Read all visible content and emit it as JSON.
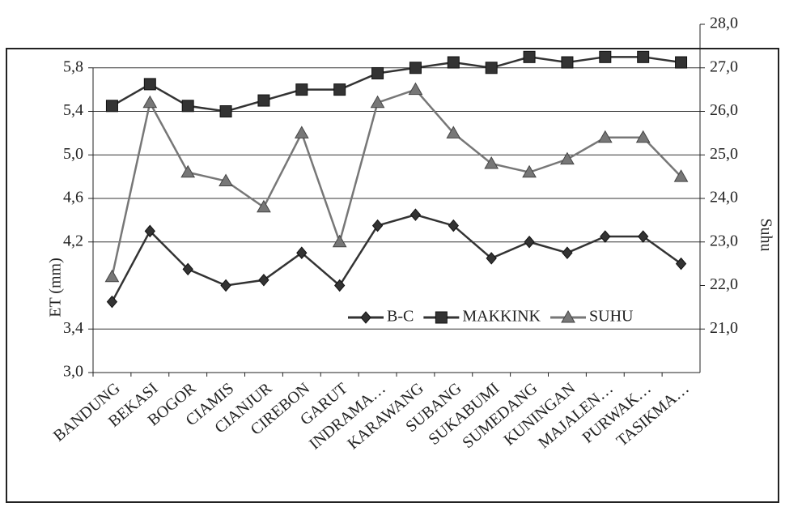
{
  "chart_data": {
    "type": "line",
    "y_label": "ET (mm)",
    "y2_label": "Suhu",
    "categories": [
      "BANDUNG",
      "BEKASI",
      "BOGOR",
      "CIAMIS",
      "CIANJUR",
      "CIREBON",
      "GARUT",
      "INDRAMA…",
      "KARAWANG",
      "SUBANG",
      "SUKABUMI",
      "SUMEDANG",
      "KUNINGAN",
      "MAJALEN…",
      "PURWAK…",
      "TASIKMA…"
    ],
    "series": [
      {
        "name": "B-C",
        "color": "#333333",
        "marker": "diamond",
        "values": [
          3.65,
          4.3,
          3.95,
          3.8,
          3.85,
          4.1,
          3.8,
          4.35,
          4.45,
          4.35,
          4.05,
          4.2,
          4.1,
          4.25,
          4.25,
          4.0
        ]
      },
      {
        "name": "MAKKINK",
        "color": "#333333",
        "marker": "square",
        "values": [
          5.45,
          5.65,
          5.45,
          5.4,
          5.5,
          5.6,
          5.6,
          5.75,
          5.8,
          5.85,
          5.8,
          5.9,
          5.85,
          5.9,
          5.9,
          5.85
        ]
      },
      {
        "name": "SUHU",
        "color": "#777777",
        "marker": "triangle",
        "axis": "y2",
        "values": [
          22.2,
          26.2,
          24.6,
          24.4,
          23.8,
          25.5,
          23.0,
          26.2,
          26.5,
          25.5,
          24.8,
          24.6,
          24.9,
          25.4,
          25.4,
          24.5
        ]
      }
    ],
    "ylim": [
      3.0,
      6.2
    ],
    "yticks": [
      {
        "value": 3.0,
        "label": "3,0"
      },
      {
        "value": 3.4,
        "label": "3,4"
      },
      {
        "value": 4.2,
        "label": "4,2"
      },
      {
        "value": 4.6,
        "label": "4,6"
      },
      {
        "value": 5.0,
        "label": "5,0"
      },
      {
        "value": 5.4,
        "label": "5,4"
      },
      {
        "value": 5.8,
        "label": "5,8"
      }
    ],
    "y2lim": [
      20.0,
      28.0
    ],
    "y2ticks": [
      {
        "value": 21,
        "label": "21,0"
      },
      {
        "value": 22,
        "label": "22,0"
      },
      {
        "value": 23,
        "label": "23,0"
      },
      {
        "value": 24,
        "label": "24,0"
      },
      {
        "value": 25,
        "label": "25,0"
      },
      {
        "value": 26,
        "label": "26,0"
      },
      {
        "value": 27,
        "label": "27,0"
      },
      {
        "value": 28,
        "label": "28,0"
      }
    ],
    "grid": true,
    "legend": "lower right"
  }
}
